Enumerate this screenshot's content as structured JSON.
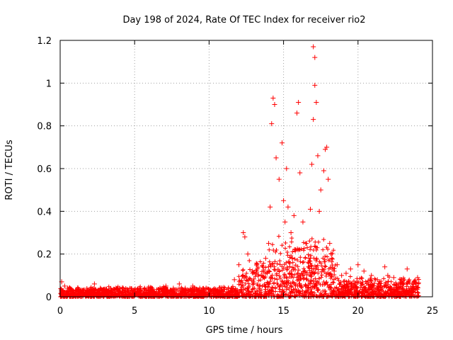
{
  "chart_data": {
    "type": "scatter",
    "title": "Day 198 of 2024, Rate Of TEC Index for receiver rio2",
    "xlabel": "GPS time / hours",
    "ylabel": "ROTI / TECUs",
    "xlim": [
      0,
      25
    ],
    "ylim": [
      0,
      1.2
    ],
    "xticks": [
      0,
      5,
      10,
      15,
      20,
      25
    ],
    "xtick_labels": [
      "0",
      "5",
      "10",
      "15",
      "20",
      "25"
    ],
    "yticks": [
      0,
      0.2,
      0.4,
      0.6,
      0.8,
      1.0,
      1.2
    ],
    "ytick_labels": [
      "0",
      "0.2",
      "0.4",
      "0.6",
      "0.8",
      "1",
      "1.2"
    ],
    "grid": true,
    "marker": "plus",
    "series": [
      {
        "name": "ROTI",
        "color": "#ff0000",
        "x": [
          0.1,
          0.3,
          0.5,
          0.8,
          1.2,
          1.6,
          2.0,
          2.3,
          2.7,
          3.1,
          3.5,
          4.0,
          4.4,
          4.8,
          5.3,
          5.8,
          6.2,
          6.7,
          7.1,
          7.6,
          8.0,
          8.4,
          8.9,
          9.3,
          9.8,
          10.3,
          10.8,
          11.3,
          11.7,
          12.0,
          12.3,
          12.4,
          12.6,
          12.9,
          13.2,
          13.5,
          13.8,
          14.0,
          14.1,
          14.2,
          14.3,
          14.4,
          14.5,
          14.7,
          14.9,
          15.0,
          15.1,
          15.2,
          15.3,
          15.5,
          15.7,
          15.8,
          15.9,
          16.0,
          16.1,
          16.3,
          16.5,
          16.7,
          16.8,
          16.9,
          17.0,
          17.0,
          17.1,
          17.1,
          17.2,
          17.3,
          17.4,
          17.5,
          17.7,
          17.8,
          17.9,
          18.0,
          18.1,
          18.2,
          18.4,
          18.6,
          18.9,
          19.2,
          19.5,
          20.0,
          20.4,
          20.9,
          21.3,
          21.8,
          22.0,
          22.4,
          22.9,
          23.3,
          23.8,
          24.0
        ],
        "y": [
          0.07,
          0.05,
          0.04,
          0.03,
          0.04,
          0.03,
          0.03,
          0.06,
          0.04,
          0.03,
          0.02,
          0.04,
          0.03,
          0.03,
          0.04,
          0.03,
          0.03,
          0.04,
          0.05,
          0.04,
          0.06,
          0.04,
          0.05,
          0.03,
          0.04,
          0.03,
          0.03,
          0.04,
          0.08,
          0.15,
          0.3,
          0.28,
          0.2,
          0.12,
          0.15,
          0.1,
          0.18,
          0.25,
          0.42,
          0.81,
          0.93,
          0.9,
          0.65,
          0.55,
          0.72,
          0.45,
          0.35,
          0.6,
          0.42,
          0.3,
          0.38,
          0.22,
          0.86,
          0.91,
          0.58,
          0.35,
          0.25,
          0.18,
          0.41,
          0.62,
          0.83,
          1.17,
          1.12,
          0.99,
          0.91,
          0.66,
          0.4,
          0.5,
          0.59,
          0.69,
          0.7,
          0.55,
          0.25,
          0.2,
          0.12,
          0.15,
          0.1,
          0.11,
          0.13,
          0.15,
          0.12,
          0.1,
          0.08,
          0.14,
          0.1,
          0.09,
          0.08,
          0.13,
          0.07,
          0.09
        ]
      }
    ]
  }
}
